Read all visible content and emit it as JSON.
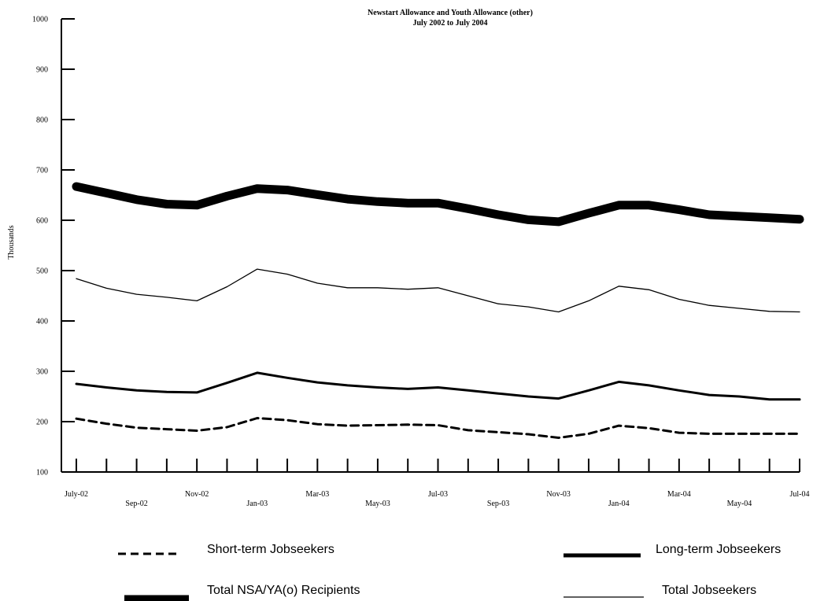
{
  "chart_data": {
    "type": "line",
    "title": "Newstart Allowance and Youth Allowance (other)",
    "subtitle": "July 2002 to July 2004",
    "ylabel": "Thousands",
    "xlabel": "",
    "ylim": [
      100,
      1000
    ],
    "y_ticks": [
      100,
      200,
      300,
      400,
      500,
      600,
      700,
      800,
      900,
      1000
    ],
    "x_tick_labels": [
      "July-02",
      "Sep-02",
      "Nov-02",
      "Jan-03",
      "Mar-03",
      "May-03",
      "Jul-03",
      "Sep-03",
      "Nov-03",
      "Jan-04",
      "Mar-04",
      "May-04",
      "Jul-04"
    ],
    "grid": false,
    "legend_position": "bottom",
    "categories": [
      "Jul-02",
      "Aug-02",
      "Sep-02",
      "Oct-02",
      "Nov-02",
      "Dec-02",
      "Jan-03",
      "Feb-03",
      "Mar-03",
      "Apr-03",
      "May-03",
      "Jun-03",
      "Jul-03",
      "Aug-03",
      "Sep-03",
      "Oct-03",
      "Nov-03",
      "Dec-03",
      "Jan-04",
      "Feb-04",
      "Mar-04",
      "Apr-04",
      "May-04",
      "Jun-04",
      "Jul-04"
    ],
    "series": [
      {
        "name": "Short-term Jobseekers",
        "style": "dashed",
        "values": [
          206,
          196,
          188,
          185,
          182,
          189,
          207,
          203,
          195,
          192,
          193,
          194,
          193,
          183,
          179,
          175,
          168,
          176,
          192,
          187,
          178,
          176,
          176,
          176,
          176
        ]
      },
      {
        "name": "Long-term Jobseekers",
        "style": "medium",
        "values": [
          275,
          268,
          262,
          259,
          258,
          277,
          297,
          287,
          278,
          272,
          268,
          265,
          268,
          262,
          256,
          250,
          246,
          262,
          279,
          272,
          262,
          253,
          250,
          244,
          244
        ]
      },
      {
        "name": "Total NSA/YA(o) Recipients",
        "style": "thick",
        "values": [
          667,
          654,
          641,
          632,
          630,
          648,
          663,
          660,
          651,
          642,
          637,
          634,
          634,
          623,
          611,
          601,
          597,
          614,
          630,
          630,
          621,
          611,
          608,
          605,
          602
        ]
      },
      {
        "name": "Total Jobseekers",
        "style": "thin",
        "values": [
          484,
          465,
          453,
          447,
          440,
          468,
          503,
          493,
          475,
          466,
          466,
          463,
          466,
          450,
          434,
          428,
          418,
          440,
          469,
          462,
          443,
          431,
          425,
          419,
          418
        ]
      }
    ]
  }
}
